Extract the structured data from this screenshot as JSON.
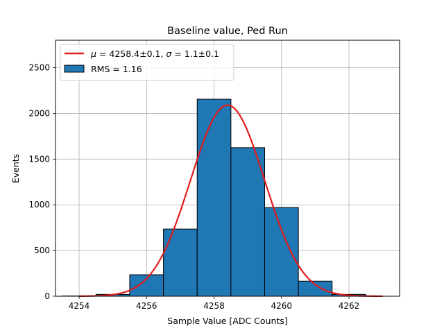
{
  "chart_data": {
    "type": "bar",
    "title": "Baseline value, Ped Run",
    "xlabel": "Sample Value [ADC Counts]",
    "ylabel": "Events",
    "xlim": [
      4253.3,
      4263.5
    ],
    "ylim": [
      0,
      2800
    ],
    "grid": true,
    "legend_position": "top-left",
    "x_ticks": [
      4254,
      4256,
      4258,
      4260,
      4262
    ],
    "y_ticks": [
      0,
      500,
      1000,
      1500,
      2000,
      2500
    ],
    "x_tick_labels": [
      "4254",
      "4256",
      "4258",
      "4260",
      "4262"
    ],
    "y_tick_labels": [
      "0",
      "500",
      "1000",
      "1500",
      "2000",
      "2500"
    ],
    "histogram": {
      "name": "RMS = 1.16",
      "color": "#1f77b4",
      "edge_color": "#000000",
      "bins": [
        {
          "x0": 4253.5,
          "x1": 4254.5,
          "count": 3
        },
        {
          "x0": 4254.5,
          "x1": 4255.5,
          "count": 20
        },
        {
          "x0": 4255.5,
          "x1": 4256.5,
          "count": 235
        },
        {
          "x0": 4256.5,
          "x1": 4257.5,
          "count": 735
        },
        {
          "x0": 4257.5,
          "x1": 4258.5,
          "count": 2155
        },
        {
          "x0": 4258.5,
          "x1": 4259.5,
          "count": 1625
        },
        {
          "x0": 4259.5,
          "x1": 4260.5,
          "count": 970
        },
        {
          "x0": 4260.5,
          "x1": 4261.5,
          "count": 165
        },
        {
          "x0": 4261.5,
          "x1": 4262.5,
          "count": 20
        }
      ]
    },
    "fit": {
      "color": "#e31a1c",
      "mu": 4258.4,
      "sigma": 1.1,
      "amplitude": 2090,
      "x_range": [
        4254,
        4263
      ],
      "mu_text": "4258.4±0.1",
      "sigma_text": "1.1±0.1"
    }
  }
}
